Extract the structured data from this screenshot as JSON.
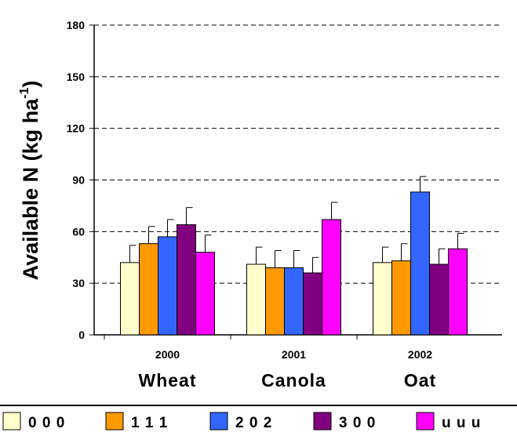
{
  "chart_data": {
    "type": "bar",
    "y_label": "Available N (kg ha",
    "y_label_sup": "-1",
    "y_label_close": ")",
    "categories": [
      "2000",
      "2001",
      "2002"
    ],
    "crops": [
      "Wheat",
      "Canola",
      "Oat"
    ],
    "series": [
      {
        "name": "0 0 0",
        "color": "#ffffcc",
        "values": [
          42,
          41,
          42
        ],
        "errors": [
          10,
          10,
          9
        ]
      },
      {
        "name": "1 1 1",
        "color": "#ff9900",
        "values": [
          53,
          39,
          43
        ],
        "errors": [
          10,
          10,
          10
        ]
      },
      {
        "name": "2 0 2",
        "color": "#3366ff",
        "values": [
          57,
          39,
          83
        ],
        "errors": [
          10,
          10,
          9
        ]
      },
      {
        "name": "3 0 0",
        "color": "#800080",
        "values": [
          64,
          36,
          41
        ],
        "errors": [
          10,
          9,
          9
        ]
      },
      {
        "name": "u u u",
        "color": "#ff00ff",
        "values": [
          48,
          67,
          50
        ],
        "errors": [
          10,
          10,
          9
        ]
      }
    ],
    "ylim": [
      0,
      180
    ],
    "yticks": [
      0,
      30,
      60,
      90,
      120,
      150,
      180
    ],
    "grid": true,
    "legend": "bottom"
  }
}
